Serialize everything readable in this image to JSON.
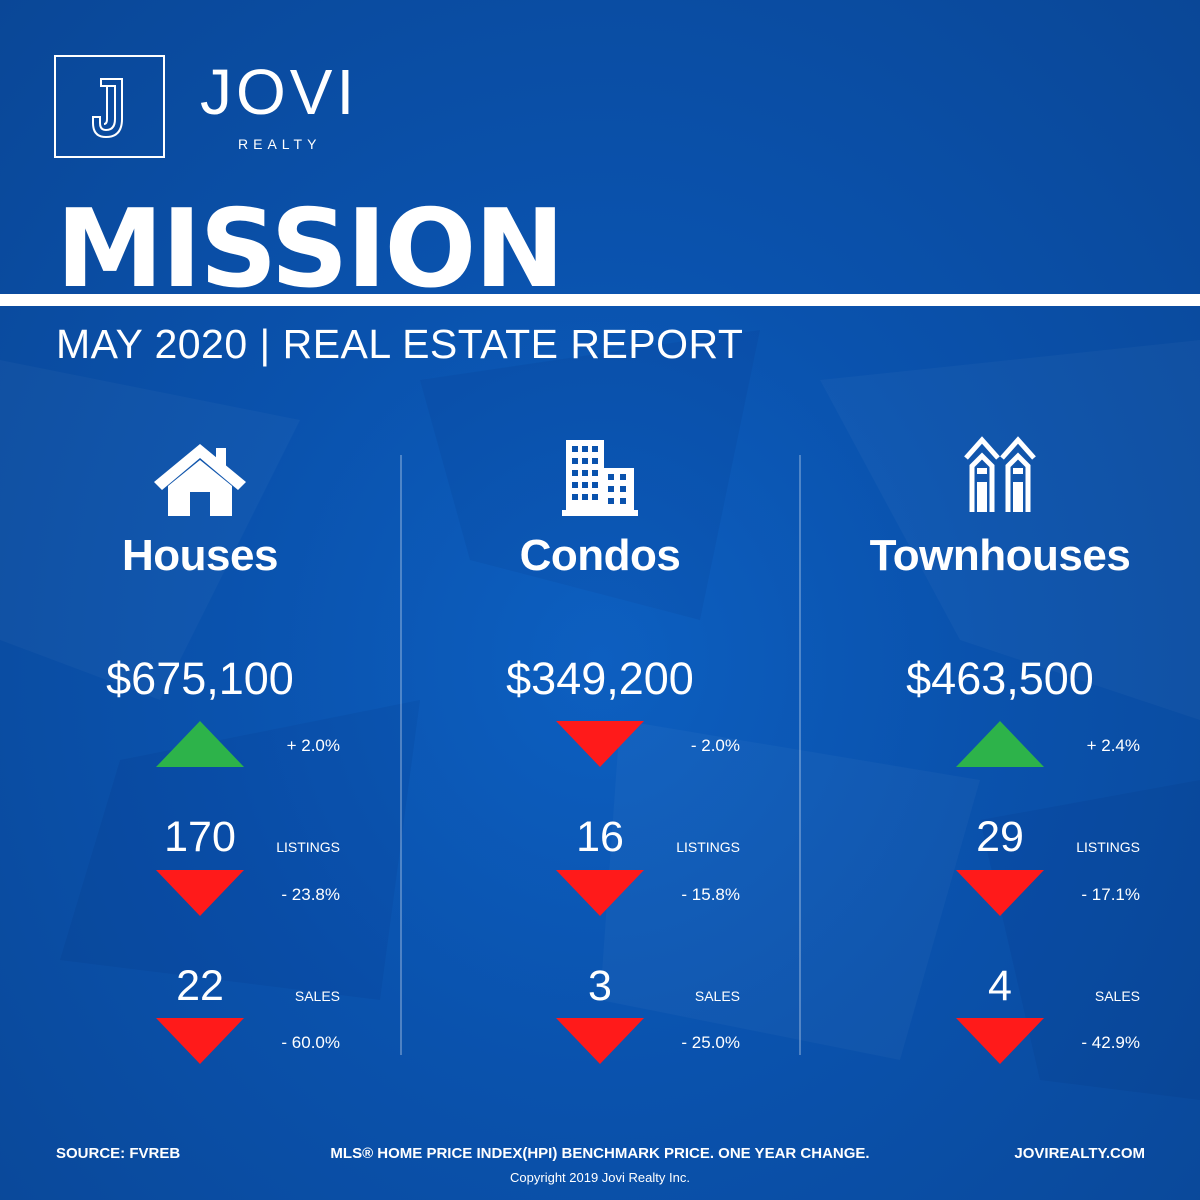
{
  "brand": {
    "name": "JOVI",
    "sub": "REALTY",
    "logo_letter": "J"
  },
  "city": "MISSION",
  "subtitle": "MAY 2020 | REAL ESTATE REPORT",
  "columns": [
    {
      "icon": "house-icon",
      "title": "Houses",
      "price": "$675,100",
      "price_change": {
        "direction": "up",
        "text": "+ 2.0%"
      },
      "listings": {
        "count": "170",
        "label": "LISTINGS",
        "direction": "down",
        "text": "- 23.8%"
      },
      "sales": {
        "count": "22",
        "label": "SALES",
        "direction": "down",
        "text": "- 60.0%"
      }
    },
    {
      "icon": "condo-building-icon",
      "title": "Condos",
      "price": "$349,200",
      "price_change": {
        "direction": "down",
        "text": "- 2.0%"
      },
      "listings": {
        "count": "16",
        "label": "LISTINGS",
        "direction": "down",
        "text": "- 15.8%"
      },
      "sales": {
        "count": "3",
        "label": "SALES",
        "direction": "down",
        "text": "- 25.0%"
      }
    },
    {
      "icon": "townhouse-icon",
      "title": "Townhouses",
      "price": "$463,500",
      "price_change": {
        "direction": "up",
        "text": "+ 2.4%"
      },
      "listings": {
        "count": "29",
        "label": "LISTINGS",
        "direction": "down",
        "text": "- 17.1%"
      },
      "sales": {
        "count": "4",
        "label": "SALES",
        "direction": "down",
        "text": "- 42.9%"
      }
    }
  ],
  "colors": {
    "background": "#0a52ad",
    "up": "#2db34a",
    "down": "#ff1a1a",
    "text": "#ffffff"
  },
  "footer": {
    "source": "SOURCE:  FVREB",
    "note": "MLS® HOME PRICE INDEX(HPI) BENCHMARK PRICE. ONE YEAR CHANGE.",
    "website": "JOVIREALTY.COM",
    "copyright": "Copyright 2019 Jovi Realty Inc."
  }
}
